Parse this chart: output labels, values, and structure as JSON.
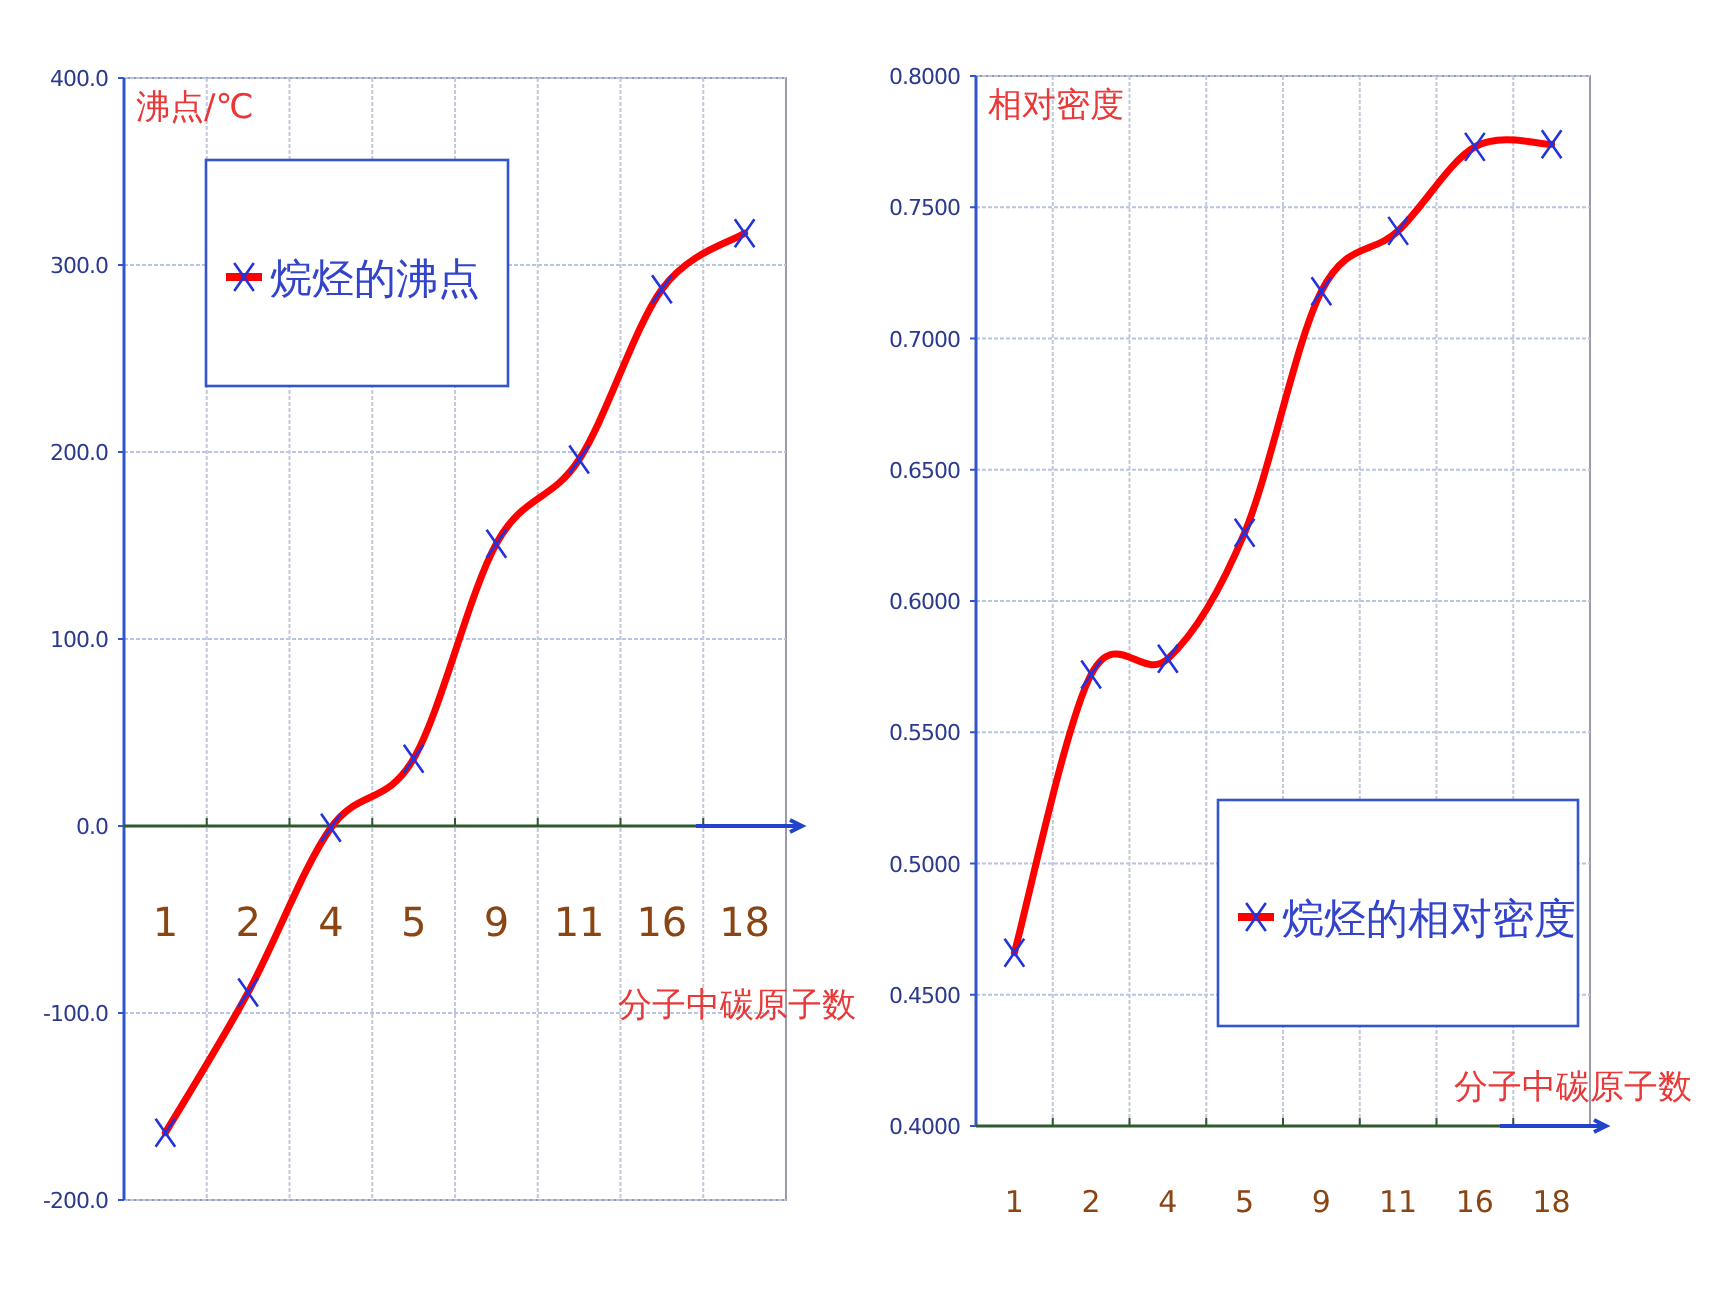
{
  "chart_data": [
    {
      "type": "line",
      "ylabel": "沸点/℃",
      "xlabel": "分子中碳原子数",
      "categories": [
        "1",
        "2",
        "4",
        "5",
        "9",
        "11",
        "16",
        "18"
      ],
      "series": [
        {
          "name": "烷烃的沸点",
          "color": "#ff0000",
          "values": [
            -164,
            -89,
            -1,
            36,
            151,
            196,
            287,
            317
          ]
        }
      ],
      "ylim": [
        -200,
        400
      ],
      "yticks": [
        {
          "value": -200,
          "label": "-200.0"
        },
        {
          "value": -100,
          "label": "-100.0"
        },
        {
          "value": 0,
          "label": "0.0"
        },
        {
          "value": 100,
          "label": "100.0"
        },
        {
          "value": 200,
          "label": "200.0"
        },
        {
          "value": 300,
          "label": "300.0"
        },
        {
          "value": 400,
          "label": "400.0"
        }
      ],
      "grid": true,
      "legend": "top left",
      "marker": "cross"
    },
    {
      "type": "line",
      "ylabel": "相对密度",
      "xlabel": "分子中碳原子数",
      "categories": [
        "1",
        "2",
        "4",
        "5",
        "9",
        "11",
        "16",
        "18"
      ],
      "series": [
        {
          "name": "烷烃的相对密度",
          "color": "#ff0000",
          "values": [
            0.466,
            0.572,
            0.578,
            0.626,
            0.718,
            0.741,
            0.773,
            0.774
          ]
        }
      ],
      "ylim": [
        0.4,
        0.8
      ],
      "yticks": [
        {
          "value": 0.4,
          "label": "0.4000"
        },
        {
          "value": 0.45,
          "label": "0.4500"
        },
        {
          "value": 0.5,
          "label": "0.5000"
        },
        {
          "value": 0.55,
          "label": "0.5500"
        },
        {
          "value": 0.6,
          "label": "0.6000"
        },
        {
          "value": 0.65,
          "label": "0.6500"
        },
        {
          "value": 0.7,
          "label": "0.7000"
        },
        {
          "value": 0.75,
          "label": "0.7500"
        },
        {
          "value": 0.8,
          "label": "0.8000"
        }
      ],
      "grid": true,
      "legend": "bottom right",
      "marker": "cross"
    }
  ]
}
